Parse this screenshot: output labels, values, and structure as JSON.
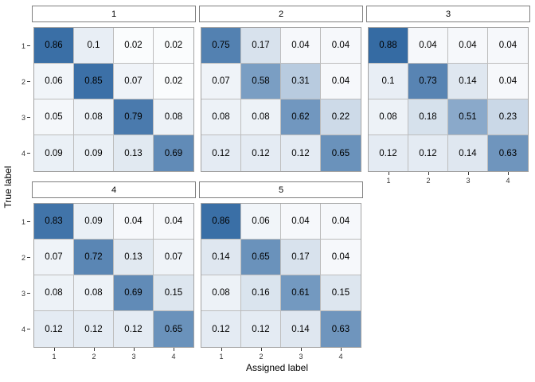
{
  "chart_data": {
    "type": "heatmap",
    "title": "",
    "xlabel": "Assigned label",
    "ylabel": "True label",
    "x_ticks": [
      "1",
      "2",
      "3",
      "4"
    ],
    "y_ticks": [
      "1",
      "2",
      "3",
      "4"
    ],
    "value_range": [
      0,
      1
    ],
    "grid": true,
    "colors": {
      "scale_low": "#FFFFFF",
      "scale_high": "#1A5797",
      "cell_border": "#bdbdbd",
      "panel_border": "#a3a3a3",
      "strip_border": "#7f7f7f",
      "tick": "#333333",
      "text": "#000000"
    },
    "panels": [
      {
        "label": "1",
        "values": [
          [
            0.86,
            0.1,
            0.02,
            0.02
          ],
          [
            0.06,
            0.85,
            0.07,
            0.02
          ],
          [
            0.05,
            0.08,
            0.79,
            0.08
          ],
          [
            0.09,
            0.09,
            0.13,
            0.69
          ]
        ]
      },
      {
        "label": "2",
        "values": [
          [
            0.75,
            0.17,
            0.04,
            0.04
          ],
          [
            0.07,
            0.58,
            0.31,
            0.04
          ],
          [
            0.08,
            0.08,
            0.62,
            0.22
          ],
          [
            0.12,
            0.12,
            0.12,
            0.65
          ]
        ]
      },
      {
        "label": "3",
        "values": [
          [
            0.88,
            0.04,
            0.04,
            0.04
          ],
          [
            0.1,
            0.73,
            0.14,
            0.04
          ],
          [
            0.08,
            0.18,
            0.51,
            0.23
          ],
          [
            0.12,
            0.12,
            0.14,
            0.63
          ]
        ]
      },
      {
        "label": "4",
        "values": [
          [
            0.83,
            0.09,
            0.04,
            0.04
          ],
          [
            0.07,
            0.72,
            0.13,
            0.07
          ],
          [
            0.08,
            0.08,
            0.69,
            0.15
          ],
          [
            0.12,
            0.12,
            0.12,
            0.65
          ]
        ]
      },
      {
        "label": "5",
        "values": [
          [
            0.86,
            0.06,
            0.04,
            0.04
          ],
          [
            0.14,
            0.65,
            0.17,
            0.04
          ],
          [
            0.08,
            0.16,
            0.61,
            0.15
          ],
          [
            0.12,
            0.12,
            0.14,
            0.63
          ]
        ]
      }
    ],
    "layout": {
      "facet_columns": 3,
      "panels_with_y_axis": [
        0,
        3
      ],
      "panels_with_x_axis": [
        2,
        3,
        4
      ],
      "legend_position": "none"
    }
  }
}
